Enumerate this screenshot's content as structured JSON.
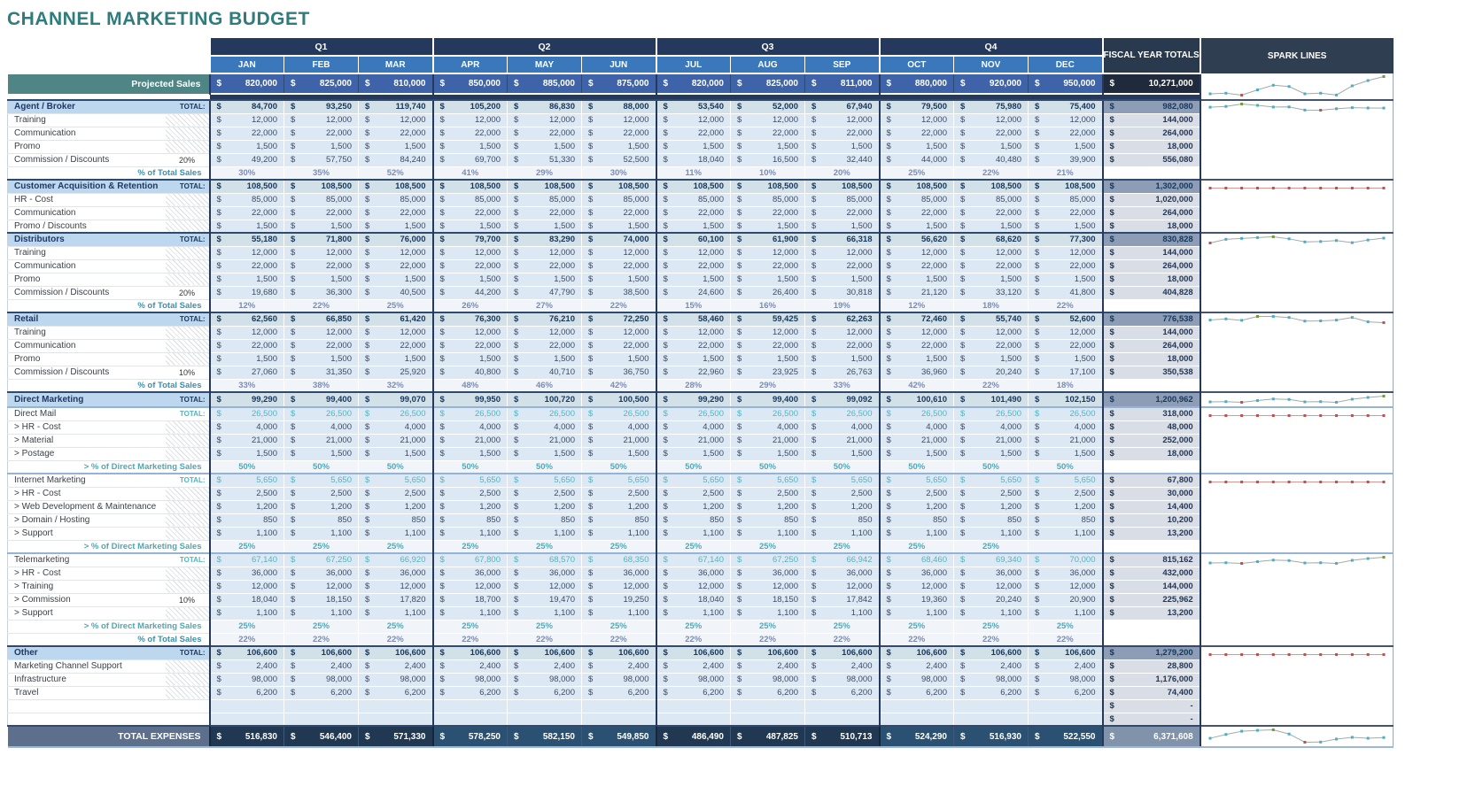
{
  "title": "CHANNEL MARKETING BUDGET",
  "colors": {
    "title_teal": "#2E7C7C",
    "header_navy": "#24395B",
    "month_blue": "#3A78BB",
    "projected_blue": "#3E63A9",
    "projected_label_teal": "#4F8585",
    "section_fill": "#BDD7EE",
    "spark_teal": "#4BACC6",
    "spark_red": "#C0504D",
    "spark_green": "#6E9C3C"
  },
  "header": {
    "quarters": [
      "Q1",
      "Q2",
      "Q3",
      "Q4"
    ],
    "months": [
      "JAN",
      "FEB",
      "MAR",
      "APR",
      "MAY",
      "JUN",
      "JUL",
      "AUG",
      "SEP",
      "OCT",
      "NOV",
      "DEC"
    ],
    "fiscal_label": "FISCAL YEAR TOTALS",
    "spark_label": "SPARK LINES"
  },
  "currency": "$",
  "projected_sales": {
    "label": "Projected Sales",
    "values": [
      "820,000",
      "825,000",
      "810,000",
      "850,000",
      "885,000",
      "875,000",
      "820,000",
      "825,000",
      "811,000",
      "880,000",
      "920,000",
      "950,000"
    ],
    "total": "10,271,000",
    "spark": true
  },
  "rows": [
    {
      "type": "section",
      "label": "Agent / Broker",
      "ratio": "TOTAL:",
      "values": [
        "84,700",
        "93,250",
        "119,740",
        "105,200",
        "86,830",
        "88,000",
        "53,540",
        "52,000",
        "67,940",
        "79,500",
        "75,980",
        "75,400"
      ],
      "total": "982,080",
      "spark": true
    },
    {
      "type": "item",
      "label": "Training",
      "repeat": "12,000",
      "total": "144,000"
    },
    {
      "type": "item",
      "label": "Communication",
      "repeat": "22,000",
      "total": "264,000"
    },
    {
      "type": "item",
      "label": "Promo",
      "repeat": "1,500",
      "total": "18,000"
    },
    {
      "type": "item",
      "label": "Commission / Discounts",
      "ratio": "20%",
      "values": [
        "49,200",
        "57,750",
        "84,240",
        "69,700",
        "51,330",
        "52,500",
        "18,040",
        "16,500",
        "32,440",
        "44,000",
        "40,480",
        "39,900"
      ],
      "total": "556,080"
    },
    {
      "type": "pct",
      "label": "% of Total Sales",
      "values": [
        "30%",
        "35%",
        "52%",
        "41%",
        "29%",
        "30%",
        "11%",
        "10%",
        "20%",
        "25%",
        "22%",
        "21%"
      ]
    },
    {
      "type": "section",
      "label": "Customer Acquisition & Retention",
      "ratio": "TOTAL:",
      "repeat": "108,500",
      "total": "1,302,000",
      "spark": true
    },
    {
      "type": "item",
      "label": "HR - Cost",
      "repeat": "85,000",
      "total": "1,020,000"
    },
    {
      "type": "item",
      "label": "Communication",
      "repeat": "22,000",
      "total": "264,000"
    },
    {
      "type": "item",
      "label": "Promo / Discounts",
      "repeat": "1,500",
      "total": "18,000"
    },
    {
      "type": "section",
      "label": "Distributors",
      "ratio": "TOTAL:",
      "values": [
        "55,180",
        "71,800",
        "76,000",
        "79,700",
        "83,290",
        "74,000",
        "60,100",
        "61,900",
        "66,318",
        "56,620",
        "68,620",
        "77,300"
      ],
      "total": "830,828",
      "spark": true
    },
    {
      "type": "item",
      "label": "Training",
      "repeat": "12,000",
      "total": "144,000"
    },
    {
      "type": "item",
      "label": "Communication",
      "repeat": "22,000",
      "total": "264,000"
    },
    {
      "type": "item",
      "label": "Promo",
      "repeat": "1,500",
      "total": "18,000"
    },
    {
      "type": "item",
      "label": "Commission / Discounts",
      "ratio": "20%",
      "values": [
        "19,680",
        "36,300",
        "40,500",
        "44,200",
        "47,790",
        "38,500",
        "24,600",
        "26,400",
        "30,818",
        "21,120",
        "33,120",
        "41,800"
      ],
      "total": "404,828"
    },
    {
      "type": "pct",
      "label": "% of Total Sales",
      "values": [
        "12%",
        "22%",
        "25%",
        "26%",
        "27%",
        "22%",
        "15%",
        "16%",
        "19%",
        "12%",
        "18%",
        "22%"
      ]
    },
    {
      "type": "section",
      "label": "Retail",
      "ratio": "TOTAL:",
      "values": [
        "62,560",
        "66,850",
        "61,420",
        "76,300",
        "76,210",
        "72,250",
        "58,460",
        "59,425",
        "62,263",
        "72,460",
        "55,740",
        "52,600"
      ],
      "total": "776,538",
      "spark": true
    },
    {
      "type": "item",
      "label": "Training",
      "repeat": "12,000",
      "total": "144,000"
    },
    {
      "type": "item",
      "label": "Communication",
      "repeat": "22,000",
      "total": "264,000"
    },
    {
      "type": "item",
      "label": "Promo",
      "repeat": "1,500",
      "total": "18,000"
    },
    {
      "type": "item",
      "label": "Commission / Discounts",
      "ratio": "10%",
      "values": [
        "27,060",
        "31,350",
        "25,920",
        "40,800",
        "40,710",
        "36,750",
        "22,960",
        "23,925",
        "26,763",
        "36,960",
        "20,240",
        "17,100"
      ],
      "total": "350,538"
    },
    {
      "type": "pct",
      "label": "% of Total Sales",
      "values": [
        "33%",
        "38%",
        "32%",
        "48%",
        "46%",
        "42%",
        "28%",
        "29%",
        "33%",
        "42%",
        "22%",
        "18%"
      ]
    },
    {
      "type": "section",
      "label": "Direct Marketing",
      "ratio": "TOTAL:",
      "values": [
        "99,290",
        "99,400",
        "99,070",
        "99,950",
        "100,720",
        "100,500",
        "99,290",
        "99,400",
        "99,092",
        "100,610",
        "101,490",
        "102,150"
      ],
      "total": "1,200,962",
      "spark": true
    },
    {
      "type": "subtotal",
      "label": "Direct Mail",
      "ratio": "TOTAL:",
      "repeat": "26,500",
      "total": "318,000",
      "spark": true,
      "sub": true
    },
    {
      "type": "item",
      "label": "> HR - Cost",
      "repeat": "4,000",
      "total": "48,000"
    },
    {
      "type": "item",
      "label": "> Material",
      "repeat": "21,000",
      "total": "252,000"
    },
    {
      "type": "item",
      "label": "> Postage",
      "repeat": "1,500",
      "total": "18,000"
    },
    {
      "type": "pctdm",
      "label": "> % of Direct Marketing Sales",
      "repeat": "50%"
    },
    {
      "type": "subtotal",
      "label": "Internet Marketing",
      "ratio": "TOTAL:",
      "repeat": "5,650",
      "total": "67,800",
      "spark": true,
      "sub": true
    },
    {
      "type": "item",
      "label": "> HR - Cost",
      "repeat": "2,500",
      "total": "30,000"
    },
    {
      "type": "item",
      "label": "> Web Development & Maintenance",
      "repeat": "1,200",
      "total": "14,400"
    },
    {
      "type": "item",
      "label": "> Domain / Hosting",
      "repeat": "850",
      "total": "10,200"
    },
    {
      "type": "item",
      "label": "> Support",
      "repeat": "1,100",
      "total": "13,200"
    },
    {
      "type": "pctdm",
      "label": "> % of Direct Marketing Sales",
      "values": [
        "25%",
        "25%",
        "25%",
        "25%",
        "25%",
        "25%",
        "25%",
        "25%",
        "25%",
        "25%",
        "25%",
        ""
      ]
    },
    {
      "type": "subtotal",
      "label": "Telemarketing",
      "ratio": "TOTAL:",
      "values": [
        "67,140",
        "67,250",
        "66,920",
        "67,800",
        "68,570",
        "68,350",
        "67,140",
        "67,250",
        "66,942",
        "68,460",
        "69,340",
        "70,000"
      ],
      "total": "815,162",
      "spark": true,
      "sub": true
    },
    {
      "type": "item",
      "label": "> HR - Cost",
      "repeat": "36,000",
      "total": "432,000"
    },
    {
      "type": "item",
      "label": "> Training",
      "repeat": "12,000",
      "total": "144,000"
    },
    {
      "type": "item",
      "label": "> Commission",
      "ratio": "10%",
      "values": [
        "18,040",
        "18,150",
        "17,820",
        "18,700",
        "19,470",
        "19,250",
        "18,040",
        "18,150",
        "17,842",
        "19,360",
        "20,240",
        "20,900"
      ],
      "total": "225,962"
    },
    {
      "type": "item",
      "label": "> Support",
      "repeat": "1,100",
      "total": "13,200"
    },
    {
      "type": "pctdm",
      "label": "> % of Direct Marketing Sales",
      "repeat": "25%"
    },
    {
      "type": "pct",
      "label": "% of Total Sales",
      "repeat": "22%"
    },
    {
      "type": "section",
      "label": "Other",
      "ratio": "TOTAL:",
      "repeat": "106,600",
      "total": "1,279,200",
      "spark": true
    },
    {
      "type": "item",
      "label": "Marketing Channel Support",
      "repeat": "2,400",
      "total": "28,800"
    },
    {
      "type": "item",
      "label": "Infrastructure",
      "repeat": "98,000",
      "total": "1,176,000"
    },
    {
      "type": "item",
      "label": "Travel",
      "repeat": "6,200",
      "total": "74,400"
    },
    {
      "type": "empty",
      "total": "-"
    },
    {
      "type": "empty",
      "total": "-"
    }
  ],
  "total_expenses": {
    "label": "TOTAL EXPENSES",
    "values": [
      "516,830",
      "546,400",
      "571,330",
      "578,250",
      "582,150",
      "549,850",
      "486,490",
      "487,825",
      "510,713",
      "524,290",
      "516,930",
      "522,550"
    ],
    "total": "6,371,608",
    "spark": true
  }
}
